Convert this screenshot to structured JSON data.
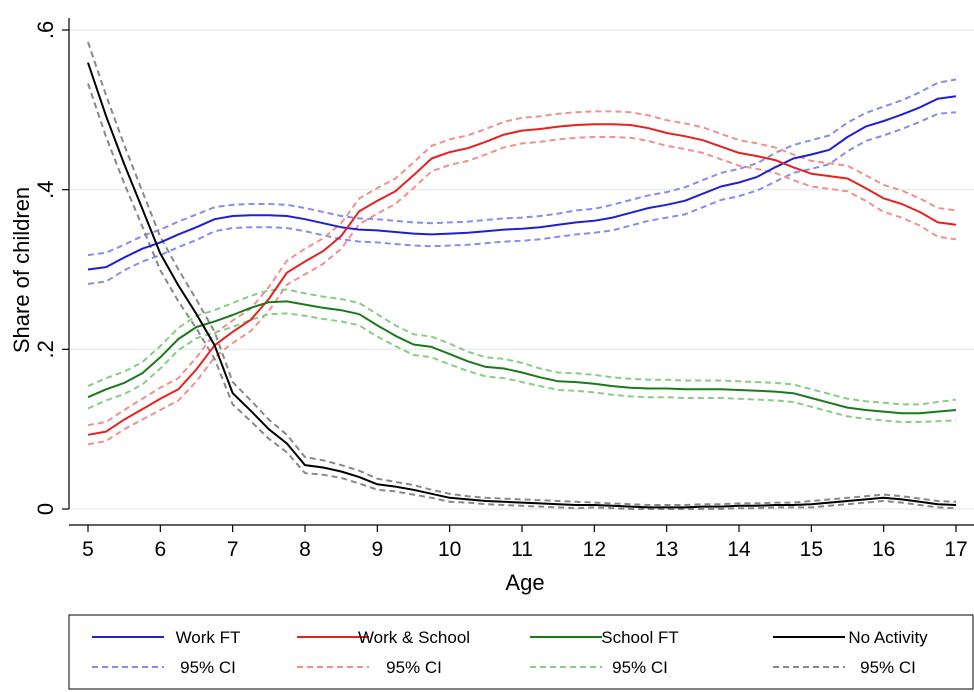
{
  "chart_data": {
    "type": "line",
    "xlabel": "Age",
    "ylabel": "Share of children",
    "xlim": [
      5,
      17
    ],
    "ylim": [
      0,
      0.6
    ],
    "x_ticks": [
      5,
      6,
      7,
      8,
      9,
      10,
      11,
      12,
      13,
      14,
      15,
      16,
      17
    ],
    "x_tick_labels": [
      "5",
      "6",
      "7",
      "8",
      "9",
      "10",
      "11",
      "12",
      "13",
      "14",
      "15",
      "16",
      "17"
    ],
    "y_ticks": [
      0,
      0.2,
      0.4,
      0.6
    ],
    "y_tick_labels": [
      "0",
      ".2",
      ".4",
      ".6"
    ],
    "grid": "horizontal",
    "legend_position": "bottom",
    "x": [
      5,
      5.25,
      5.5,
      5.75,
      6,
      6.25,
      6.5,
      6.75,
      7,
      7.25,
      7.5,
      7.75,
      8,
      8.25,
      8.5,
      8.75,
      9,
      9.25,
      9.5,
      9.75,
      10,
      10.25,
      10.5,
      10.75,
      11,
      11.25,
      11.5,
      11.75,
      12,
      12.25,
      12.5,
      12.75,
      13,
      13.25,
      13.5,
      13.75,
      14,
      14.25,
      14.5,
      14.75,
      15,
      15.25,
      15.5,
      15.75,
      16,
      16.25,
      16.5,
      16.75,
      17
    ],
    "series": [
      {
        "name": "Work FT",
        "color": "#1f1fd6",
        "values": [
          0.3,
          0.303,
          0.315,
          0.326,
          0.334,
          0.344,
          0.353,
          0.363,
          0.367,
          0.368,
          0.368,
          0.367,
          0.363,
          0.358,
          0.353,
          0.35,
          0.349,
          0.347,
          0.345,
          0.344,
          0.345,
          0.346,
          0.348,
          0.35,
          0.351,
          0.353,
          0.356,
          0.359,
          0.361,
          0.365,
          0.371,
          0.377,
          0.381,
          0.386,
          0.395,
          0.404,
          0.409,
          0.416,
          0.428,
          0.439,
          0.444,
          0.45,
          0.466,
          0.479,
          0.486,
          0.494,
          0.503,
          0.514,
          0.517
        ],
        "ci_upper": [
          0.318,
          0.321,
          0.331,
          0.342,
          0.35,
          0.36,
          0.369,
          0.378,
          0.381,
          0.382,
          0.382,
          0.381,
          0.377,
          0.372,
          0.367,
          0.364,
          0.363,
          0.361,
          0.359,
          0.358,
          0.359,
          0.36,
          0.362,
          0.364,
          0.365,
          0.367,
          0.37,
          0.374,
          0.376,
          0.381,
          0.387,
          0.393,
          0.397,
          0.403,
          0.412,
          0.421,
          0.426,
          0.433,
          0.446,
          0.456,
          0.462,
          0.468,
          0.484,
          0.496,
          0.504,
          0.512,
          0.522,
          0.534,
          0.538
        ],
        "ci_lower": [
          0.282,
          0.285,
          0.299,
          0.31,
          0.318,
          0.328,
          0.337,
          0.348,
          0.352,
          0.353,
          0.353,
          0.352,
          0.348,
          0.343,
          0.338,
          0.335,
          0.334,
          0.332,
          0.33,
          0.329,
          0.33,
          0.331,
          0.333,
          0.335,
          0.336,
          0.338,
          0.341,
          0.344,
          0.346,
          0.349,
          0.355,
          0.361,
          0.365,
          0.369,
          0.378,
          0.387,
          0.392,
          0.399,
          0.41,
          0.421,
          0.426,
          0.432,
          0.448,
          0.461,
          0.468,
          0.476,
          0.485,
          0.495,
          0.497
        ]
      },
      {
        "name": "Work & School",
        "color": "#e82020",
        "values": [
          0.093,
          0.097,
          0.112,
          0.125,
          0.138,
          0.15,
          0.175,
          0.205,
          0.222,
          0.237,
          0.263,
          0.296,
          0.31,
          0.323,
          0.342,
          0.373,
          0.386,
          0.398,
          0.418,
          0.439,
          0.447,
          0.452,
          0.46,
          0.469,
          0.474,
          0.476,
          0.479,
          0.481,
          0.482,
          0.482,
          0.481,
          0.477,
          0.471,
          0.467,
          0.462,
          0.454,
          0.446,
          0.442,
          0.437,
          0.428,
          0.42,
          0.417,
          0.414,
          0.402,
          0.389,
          0.382,
          0.372,
          0.359,
          0.356
        ],
        "ci_upper": [
          0.105,
          0.109,
          0.124,
          0.138,
          0.152,
          0.164,
          0.19,
          0.22,
          0.236,
          0.251,
          0.278,
          0.311,
          0.326,
          0.339,
          0.358,
          0.389,
          0.402,
          0.414,
          0.434,
          0.455,
          0.463,
          0.468,
          0.476,
          0.485,
          0.49,
          0.492,
          0.495,
          0.497,
          0.498,
          0.498,
          0.497,
          0.493,
          0.487,
          0.483,
          0.478,
          0.47,
          0.462,
          0.458,
          0.453,
          0.444,
          0.436,
          0.433,
          0.43,
          0.418,
          0.406,
          0.399,
          0.389,
          0.377,
          0.374
        ],
        "ci_lower": [
          0.081,
          0.085,
          0.1,
          0.112,
          0.124,
          0.136,
          0.16,
          0.19,
          0.208,
          0.223,
          0.248,
          0.281,
          0.294,
          0.307,
          0.326,
          0.357,
          0.37,
          0.382,
          0.402,
          0.423,
          0.431,
          0.436,
          0.444,
          0.453,
          0.458,
          0.46,
          0.463,
          0.465,
          0.466,
          0.466,
          0.465,
          0.461,
          0.455,
          0.451,
          0.446,
          0.438,
          0.43,
          0.426,
          0.421,
          0.412,
          0.404,
          0.401,
          0.398,
          0.386,
          0.372,
          0.365,
          0.355,
          0.341,
          0.338
        ]
      },
      {
        "name": "School FT",
        "color": "#1a7a1a",
        "values": [
          0.14,
          0.15,
          0.158,
          0.17,
          0.19,
          0.213,
          0.228,
          0.235,
          0.243,
          0.252,
          0.259,
          0.26,
          0.256,
          0.252,
          0.249,
          0.244,
          0.23,
          0.217,
          0.206,
          0.203,
          0.194,
          0.185,
          0.178,
          0.176,
          0.171,
          0.165,
          0.16,
          0.159,
          0.157,
          0.154,
          0.152,
          0.151,
          0.151,
          0.15,
          0.15,
          0.15,
          0.149,
          0.148,
          0.147,
          0.145,
          0.139,
          0.133,
          0.127,
          0.124,
          0.122,
          0.12,
          0.12,
          0.122,
          0.124
        ],
        "ci_upper": [
          0.154,
          0.164,
          0.172,
          0.184,
          0.204,
          0.227,
          0.242,
          0.249,
          0.258,
          0.267,
          0.274,
          0.275,
          0.27,
          0.266,
          0.263,
          0.258,
          0.244,
          0.23,
          0.219,
          0.216,
          0.207,
          0.197,
          0.19,
          0.188,
          0.183,
          0.176,
          0.171,
          0.17,
          0.168,
          0.165,
          0.163,
          0.162,
          0.162,
          0.161,
          0.161,
          0.161,
          0.16,
          0.159,
          0.158,
          0.156,
          0.15,
          0.144,
          0.138,
          0.135,
          0.133,
          0.131,
          0.131,
          0.134,
          0.137
        ],
        "ci_lower": [
          0.126,
          0.136,
          0.144,
          0.156,
          0.176,
          0.199,
          0.214,
          0.221,
          0.228,
          0.237,
          0.244,
          0.245,
          0.242,
          0.238,
          0.235,
          0.23,
          0.216,
          0.204,
          0.193,
          0.19,
          0.181,
          0.173,
          0.166,
          0.164,
          0.159,
          0.154,
          0.149,
          0.148,
          0.146,
          0.143,
          0.141,
          0.14,
          0.14,
          0.139,
          0.139,
          0.139,
          0.138,
          0.137,
          0.136,
          0.134,
          0.128,
          0.122,
          0.116,
          0.113,
          0.111,
          0.109,
          0.109,
          0.11,
          0.111
        ]
      },
      {
        "name": "No Activity",
        "color": "#000000",
        "values": [
          0.559,
          0.492,
          0.432,
          0.376,
          0.32,
          0.28,
          0.244,
          0.205,
          0.145,
          0.123,
          0.1,
          0.082,
          0.055,
          0.052,
          0.047,
          0.04,
          0.031,
          0.028,
          0.024,
          0.019,
          0.014,
          0.012,
          0.01,
          0.009,
          0.008,
          0.007,
          0.006,
          0.005,
          0.005,
          0.004,
          0.003,
          0.002,
          0.002,
          0.002,
          0.003,
          0.003,
          0.004,
          0.004,
          0.005,
          0.005,
          0.006,
          0.008,
          0.01,
          0.012,
          0.014,
          0.012,
          0.009,
          0.006,
          0.005
        ],
        "ci_upper": [
          0.585,
          0.518,
          0.456,
          0.398,
          0.341,
          0.3,
          0.262,
          0.222,
          0.159,
          0.136,
          0.112,
          0.093,
          0.065,
          0.061,
          0.055,
          0.048,
          0.038,
          0.034,
          0.03,
          0.024,
          0.019,
          0.016,
          0.014,
          0.013,
          0.012,
          0.011,
          0.01,
          0.009,
          0.008,
          0.007,
          0.006,
          0.005,
          0.005,
          0.005,
          0.006,
          0.006,
          0.007,
          0.007,
          0.008,
          0.008,
          0.01,
          0.012,
          0.014,
          0.016,
          0.018,
          0.016,
          0.013,
          0.01,
          0.009
        ],
        "ci_lower": [
          0.533,
          0.466,
          0.408,
          0.354,
          0.299,
          0.26,
          0.226,
          0.188,
          0.131,
          0.11,
          0.088,
          0.071,
          0.045,
          0.043,
          0.039,
          0.032,
          0.024,
          0.022,
          0.018,
          0.014,
          0.009,
          0.008,
          0.006,
          0.005,
          0.004,
          0.003,
          0.002,
          0.001,
          0.002,
          0.001,
          0.0,
          0.0,
          0.0,
          0.0,
          0.0,
          0.0,
          0.001,
          0.001,
          0.002,
          0.002,
          0.002,
          0.004,
          0.006,
          0.008,
          0.01,
          0.008,
          0.005,
          0.002,
          0.001
        ]
      }
    ],
    "legend": [
      {
        "label": "Work FT",
        "color": "#1f1fd6",
        "style": "solid"
      },
      {
        "label": "Work & School",
        "color": "#e82020",
        "style": "solid"
      },
      {
        "label": "School FT",
        "color": "#1a7a1a",
        "style": "solid"
      },
      {
        "label": "No Activity",
        "color": "#000000",
        "style": "solid"
      },
      {
        "label": "95% CI",
        "color": "#8a8af0",
        "style": "dashed"
      },
      {
        "label": "95% CI",
        "color": "#f09090",
        "style": "dashed"
      },
      {
        "label": "95% CI",
        "color": "#88cc88",
        "style": "dashed"
      },
      {
        "label": "95% CI",
        "color": "#888888",
        "style": "dashed"
      }
    ]
  }
}
